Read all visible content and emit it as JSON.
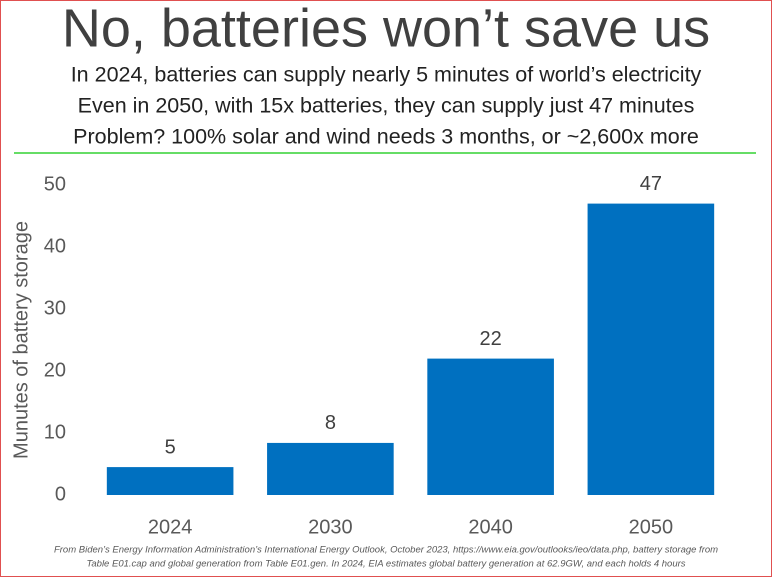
{
  "chart_data": {
    "type": "bar",
    "title": "No, batteries won’t save us",
    "subtitle": [
      "In 2024, batteries can supply nearly 5 minutes of world’s electricity",
      "Even in 2050, with 15x batteries, they can supply just 47 minutes",
      "Problem? 100% solar and wind needs 3 months, or ~2,600x more"
    ],
    "ylabel": "Munutes of battery storage",
    "categories": [
      "2024",
      "2030",
      "2040",
      "2050"
    ],
    "values": [
      4.5,
      8.4,
      22,
      47
    ],
    "value_labels": [
      "5",
      "8",
      "22",
      "47"
    ],
    "color": "#0070c0",
    "ylim": [
      0,
      50
    ],
    "yticks": [
      0,
      10,
      20,
      30,
      40,
      50
    ],
    "grid": false,
    "footnote": [
      "From Biden’s Energy Information Administration’s International Energy Outlook, October 2023, https://www.eia.gov/outlooks/ieo/data.php, battery storage from",
      "Table E01.cap and global generation from Table E01.gen. In 2024, EIA estimates global battery generation at 62.9GW, and each holds 4 hours"
    ]
  }
}
